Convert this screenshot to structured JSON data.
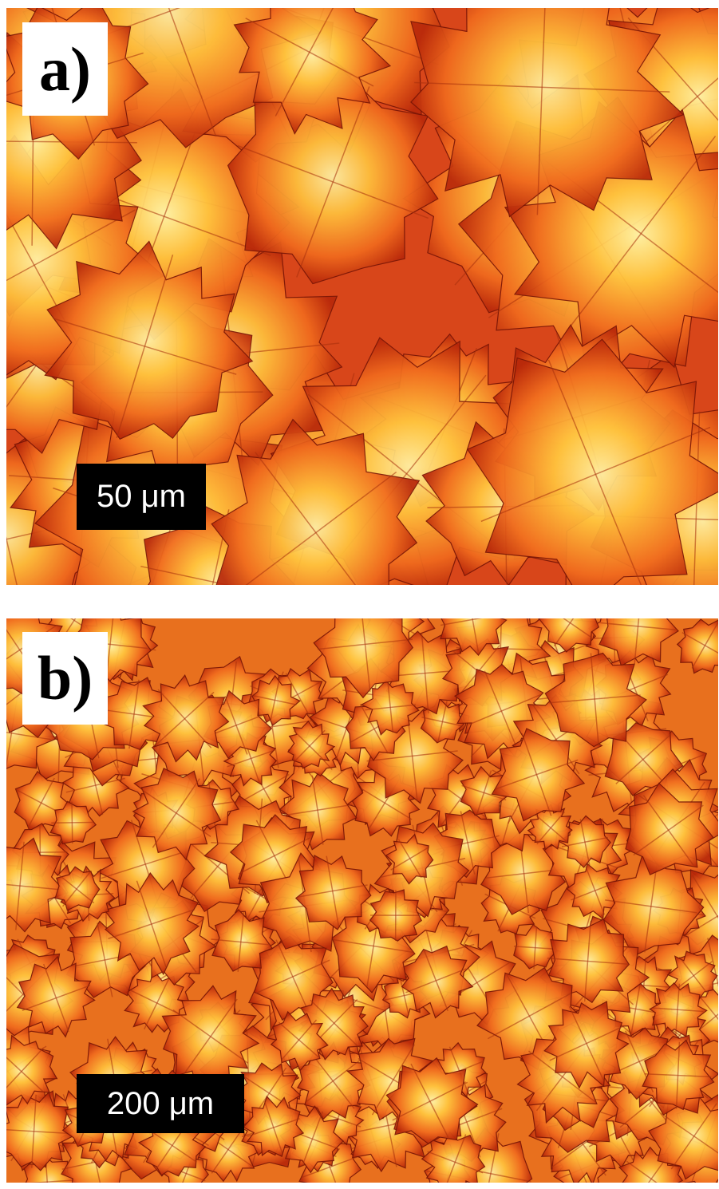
{
  "panels": [
    {
      "label": "a)",
      "scale_bar": "50 μm"
    },
    {
      "label": "b)",
      "scale_bar": "200 μm"
    }
  ]
}
